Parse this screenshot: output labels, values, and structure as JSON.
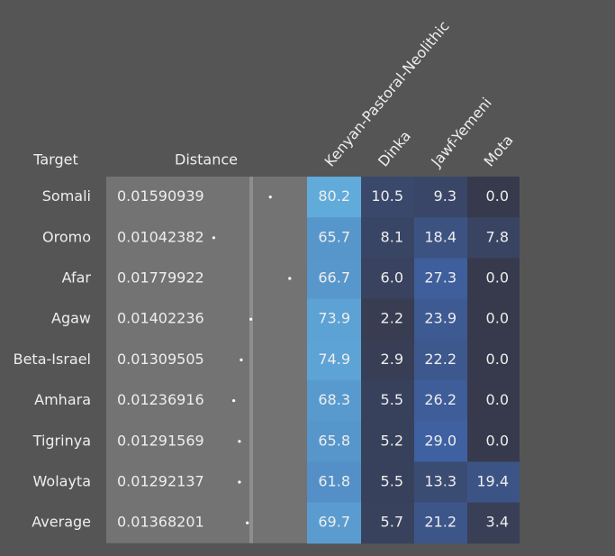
{
  "chart_data": {
    "type": "table",
    "headers": {
      "target": "Target",
      "distance": "Distance"
    },
    "sources": [
      "Kenyan-Pastoral-Neolithic",
      "Dinka",
      "Jawf-Yemeni",
      "Mota"
    ],
    "rows": [
      {
        "target": "Somali",
        "distance": "0.01590939",
        "values": [
          80.2,
          10.5,
          9.3,
          0.0
        ]
      },
      {
        "target": "Oromo",
        "distance": "0.01042382",
        "values": [
          65.7,
          8.1,
          18.4,
          7.8
        ]
      },
      {
        "target": "Afar",
        "distance": "0.01779922",
        "values": [
          66.7,
          6.0,
          27.3,
          0.0
        ]
      },
      {
        "target": "Agaw",
        "distance": "0.01402236",
        "values": [
          73.9,
          2.2,
          23.9,
          0.0
        ]
      },
      {
        "target": "Beta-Israel",
        "distance": "0.01309505",
        "values": [
          74.9,
          2.9,
          22.2,
          0.0
        ]
      },
      {
        "target": "Amhara",
        "distance": "0.01236916",
        "values": [
          68.3,
          5.5,
          26.2,
          0.0
        ]
      },
      {
        "target": "Tigrinya",
        "distance": "0.01291569",
        "values": [
          65.8,
          5.2,
          29.0,
          0.0
        ]
      },
      {
        "target": "Wolayta",
        "distance": "0.01292137",
        "values": [
          61.8,
          5.5,
          13.3,
          19.4
        ]
      },
      {
        "target": "Average",
        "distance": "0.01368201",
        "values": [
          69.7,
          5.7,
          21.2,
          3.4
        ]
      }
    ],
    "distance_range": [
      0,
      0.02
    ],
    "value_range": [
      0,
      100
    ],
    "colors": {
      "background": "#555555",
      "distance_panel": "#737373",
      "distance_divider": "#8e8e8e",
      "low": "#373a4c",
      "mid": "#3f62a4",
      "high": "#6ec8f0",
      "dot": "#ffffff",
      "text": "#eeeeee"
    }
  }
}
